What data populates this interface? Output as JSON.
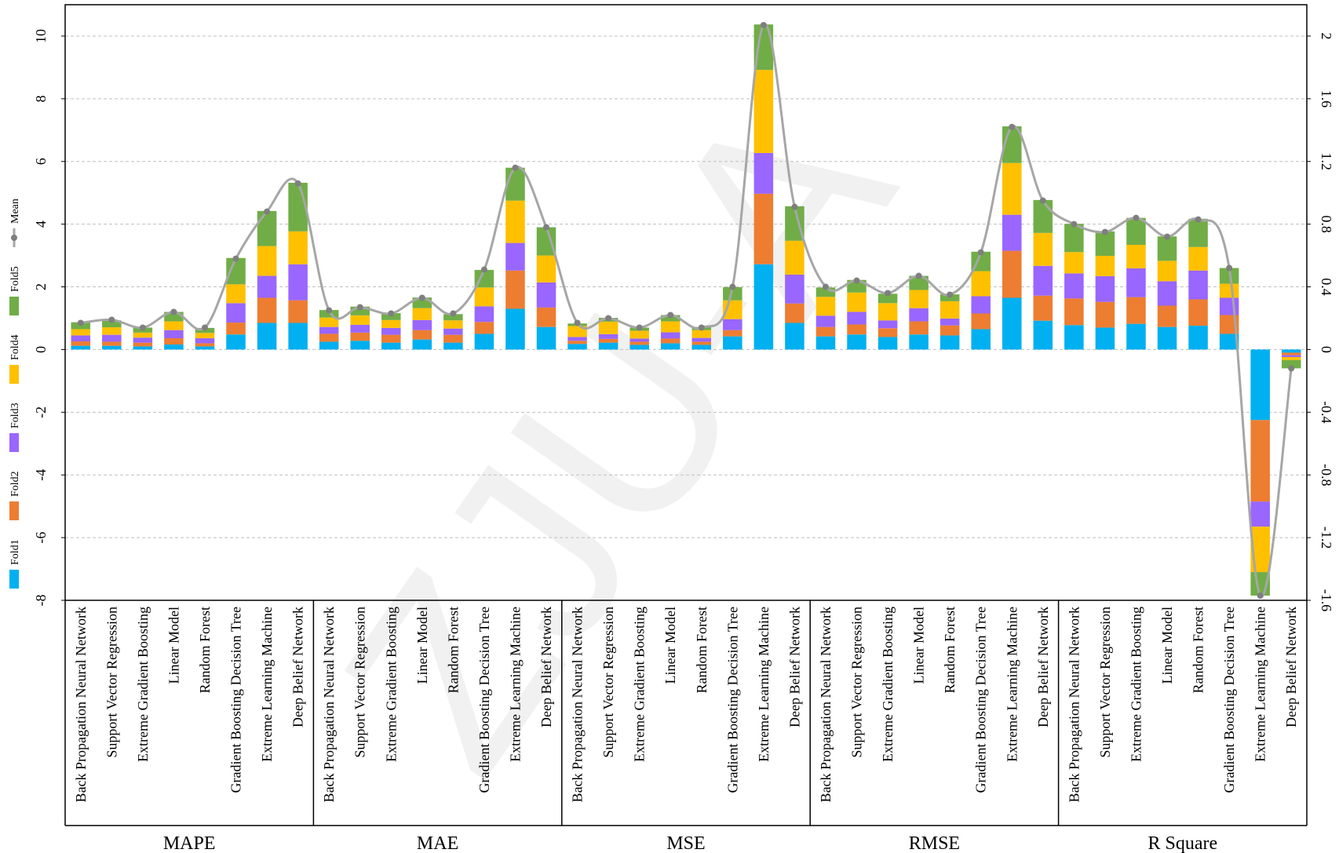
{
  "chart_data": {
    "type": "bar",
    "stacked": true,
    "watermark": "ZJU-A",
    "groups": [
      "MAPE",
      "MAE",
      "MSE",
      "RMSE",
      "R Square"
    ],
    "categories": [
      "Back Propagation Neural Network",
      "Support Vector Regression",
      "Extreme Gradient Boosting",
      "Linear Model",
      "Random Forest",
      "Gradient Boosting Decision Tree",
      "Extreme Learning Machine",
      "Deep Belief Network",
      "Back Propagation Neural Network",
      "Support Vector Regression",
      "Extreme Gradient Boosting",
      "Linear Model",
      "Random Forest",
      "Gradient Boosting Decision Tree",
      "Extreme Learning Machine",
      "Deep Belief Network",
      "Back Propagation Neural Network",
      "Support Vector Regression",
      "Extreme Gradient Boosting",
      "Linear Model",
      "Random Forest",
      "Gradient Boosting Decision Tree",
      "Extreme Learning Machine",
      "Deep Belief Network",
      "Back Propagation Neural Network",
      "Support Vector Regression",
      "Extreme Gradient Boosting",
      "Linear Model",
      "Random Forest",
      "Gradient Boosting Decision Tree",
      "Extreme Learning Machine",
      "Deep Belief Network",
      "Back Propagation Neural Network",
      "Support Vector Regression",
      "Extreme Gradient Boosting",
      "Linear Model",
      "Random Forest",
      "Gradient Boosting Decision Tree",
      "Extreme Learning Machine",
      "Deep Belief Network"
    ],
    "series": [
      {
        "name": "Fold1",
        "color": "#00b0f0",
        "values": [
          0.12,
          0.12,
          0.1,
          0.16,
          0.1,
          0.48,
          0.85,
          0.85,
          0.25,
          0.28,
          0.22,
          0.32,
          0.22,
          0.5,
          1.3,
          0.72,
          0.18,
          0.22,
          0.15,
          0.2,
          0.15,
          0.42,
          2.72,
          0.85,
          0.42,
          0.48,
          0.4,
          0.48,
          0.45,
          0.65,
          1.65,
          0.92,
          0.78,
          0.7,
          0.82,
          0.72,
          0.76,
          0.5,
          -2.25,
          -0.1
        ]
      },
      {
        "name": "Fold2",
        "color": "#ed7d31",
        "values": [
          0.14,
          0.13,
          0.12,
          0.2,
          0.1,
          0.38,
          0.8,
          0.72,
          0.25,
          0.26,
          0.25,
          0.3,
          0.25,
          0.38,
          1.22,
          0.62,
          0.1,
          0.12,
          0.1,
          0.15,
          0.1,
          0.2,
          2.25,
          0.62,
          0.3,
          0.32,
          0.28,
          0.42,
          0.32,
          0.5,
          1.5,
          0.8,
          0.85,
          0.82,
          0.85,
          0.68,
          0.84,
          0.6,
          -2.6,
          -0.08
        ]
      },
      {
        "name": "Fold3",
        "color": "#9966ff",
        "values": [
          0.19,
          0.22,
          0.16,
          0.26,
          0.16,
          0.62,
          0.7,
          1.15,
          0.22,
          0.25,
          0.22,
          0.32,
          0.2,
          0.5,
          0.88,
          0.8,
          0.12,
          0.15,
          0.1,
          0.2,
          0.12,
          0.35,
          1.3,
          0.92,
          0.36,
          0.4,
          0.25,
          0.42,
          0.22,
          0.55,
          1.15,
          0.95,
          0.8,
          0.82,
          0.92,
          0.78,
          0.92,
          0.55,
          -0.8,
          -0.06
        ]
      },
      {
        "name": "Fold4",
        "color": "#ffc000",
        "values": [
          0.2,
          0.24,
          0.16,
          0.28,
          0.17,
          0.6,
          0.95,
          1.05,
          0.3,
          0.3,
          0.25,
          0.38,
          0.26,
          0.6,
          1.35,
          0.86,
          0.35,
          0.4,
          0.25,
          0.35,
          0.25,
          0.6,
          2.65,
          1.08,
          0.6,
          0.62,
          0.55,
          0.58,
          0.55,
          0.8,
          1.65,
          1.05,
          0.68,
          0.65,
          0.75,
          0.65,
          0.75,
          0.45,
          -1.45,
          -0.1
        ]
      },
      {
        "name": "Fold5",
        "color": "#70ad47",
        "values": [
          0.22,
          0.22,
          0.16,
          0.3,
          0.16,
          0.84,
          1.12,
          1.55,
          0.24,
          0.28,
          0.22,
          0.34,
          0.2,
          0.56,
          1.05,
          0.9,
          0.08,
          0.12,
          0.1,
          0.2,
          0.1,
          0.42,
          1.45,
          1.1,
          0.3,
          0.4,
          0.3,
          0.45,
          0.22,
          0.62,
          1.17,
          1.05,
          0.9,
          0.78,
          0.86,
          0.78,
          0.9,
          0.5,
          -0.75,
          -0.26
        ]
      },
      {
        "name": "Mean",
        "type": "line",
        "axis": "y2",
        "color": "#a6a6a6",
        "marker_color": "#7f7f7f",
        "values": [
          0.17,
          0.19,
          0.14,
          0.24,
          0.14,
          0.58,
          0.88,
          1.06,
          0.25,
          0.27,
          0.23,
          0.33,
          0.23,
          0.51,
          1.16,
          0.78,
          0.17,
          0.2,
          0.14,
          0.22,
          0.14,
          0.4,
          2.07,
          0.91,
          0.4,
          0.44,
          0.36,
          0.47,
          0.35,
          0.62,
          1.42,
          0.95,
          0.8,
          0.75,
          0.84,
          0.72,
          0.83,
          0.52,
          -1.57,
          -0.12
        ]
      }
    ],
    "ylim": [
      -8,
      11
    ],
    "yticks": [
      -8,
      -6,
      -4,
      -2,
      0,
      2,
      4,
      6,
      8,
      10
    ],
    "y2lim": [
      -1.6,
      2.2
    ],
    "y2ticks": [
      -1.6,
      -1.2,
      -0.8,
      -0.4,
      0,
      0.4,
      0.8,
      1.2,
      1.6,
      2
    ],
    "grid": true,
    "legend": "left"
  }
}
